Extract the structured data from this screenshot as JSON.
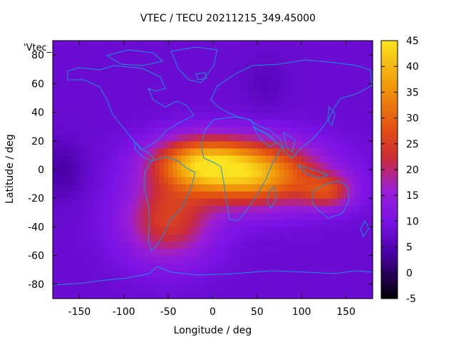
{
  "chart_data": {
    "type": "heatmap",
    "title": "VTEC / TECU 20211215_349.45000",
    "xlabel": "Longitude / deg",
    "ylabel": "Latitude / deg",
    "legend_key": "'Vtec_",
    "xlim": [
      -180,
      180
    ],
    "ylim": [
      -90,
      90
    ],
    "x_ticks": [
      -150,
      -100,
      -50,
      0,
      50,
      100,
      150
    ],
    "y_ticks": [
      -80,
      -60,
      -40,
      -20,
      0,
      20,
      40,
      60,
      80
    ],
    "colorbar": {
      "min": -5,
      "max": 45,
      "ticks": [
        -5,
        0,
        5,
        10,
        15,
        20,
        25,
        30,
        35,
        40,
        45
      ]
    },
    "colormap_stops": [
      "#000000",
      "#4a00a8",
      "#7a12e6",
      "#9a1ed6",
      "#cc2d34",
      "#e25012",
      "#f0960a",
      "#fbe21e"
    ],
    "colormap_positions": [
      0.0,
      0.18,
      0.3,
      0.42,
      0.55,
      0.66,
      0.82,
      1.0
    ],
    "vtec_features": {
      "background": 8,
      "peaks": [
        {
          "lon": 50,
          "lat": -3,
          "value": 37,
          "lon_spread": 70,
          "lat_spread": 22
        },
        {
          "lon": -15,
          "lat": 5,
          "value": 33,
          "lon_spread": 55,
          "lat_spread": 18
        },
        {
          "lon": -50,
          "lat": -35,
          "value": 25,
          "lon_spread": 50,
          "lat_spread": 28
        },
        {
          "lon": 130,
          "lat": -15,
          "value": 22,
          "lon_spread": 30,
          "lat_spread": 12
        }
      ],
      "minima": [
        {
          "lon": -170,
          "lat": 0,
          "value": 4
        },
        {
          "lon": 60,
          "lat": 60,
          "value": 6
        }
      ]
    },
    "grid": false
  },
  "coastline_color": "#1c8fd8"
}
